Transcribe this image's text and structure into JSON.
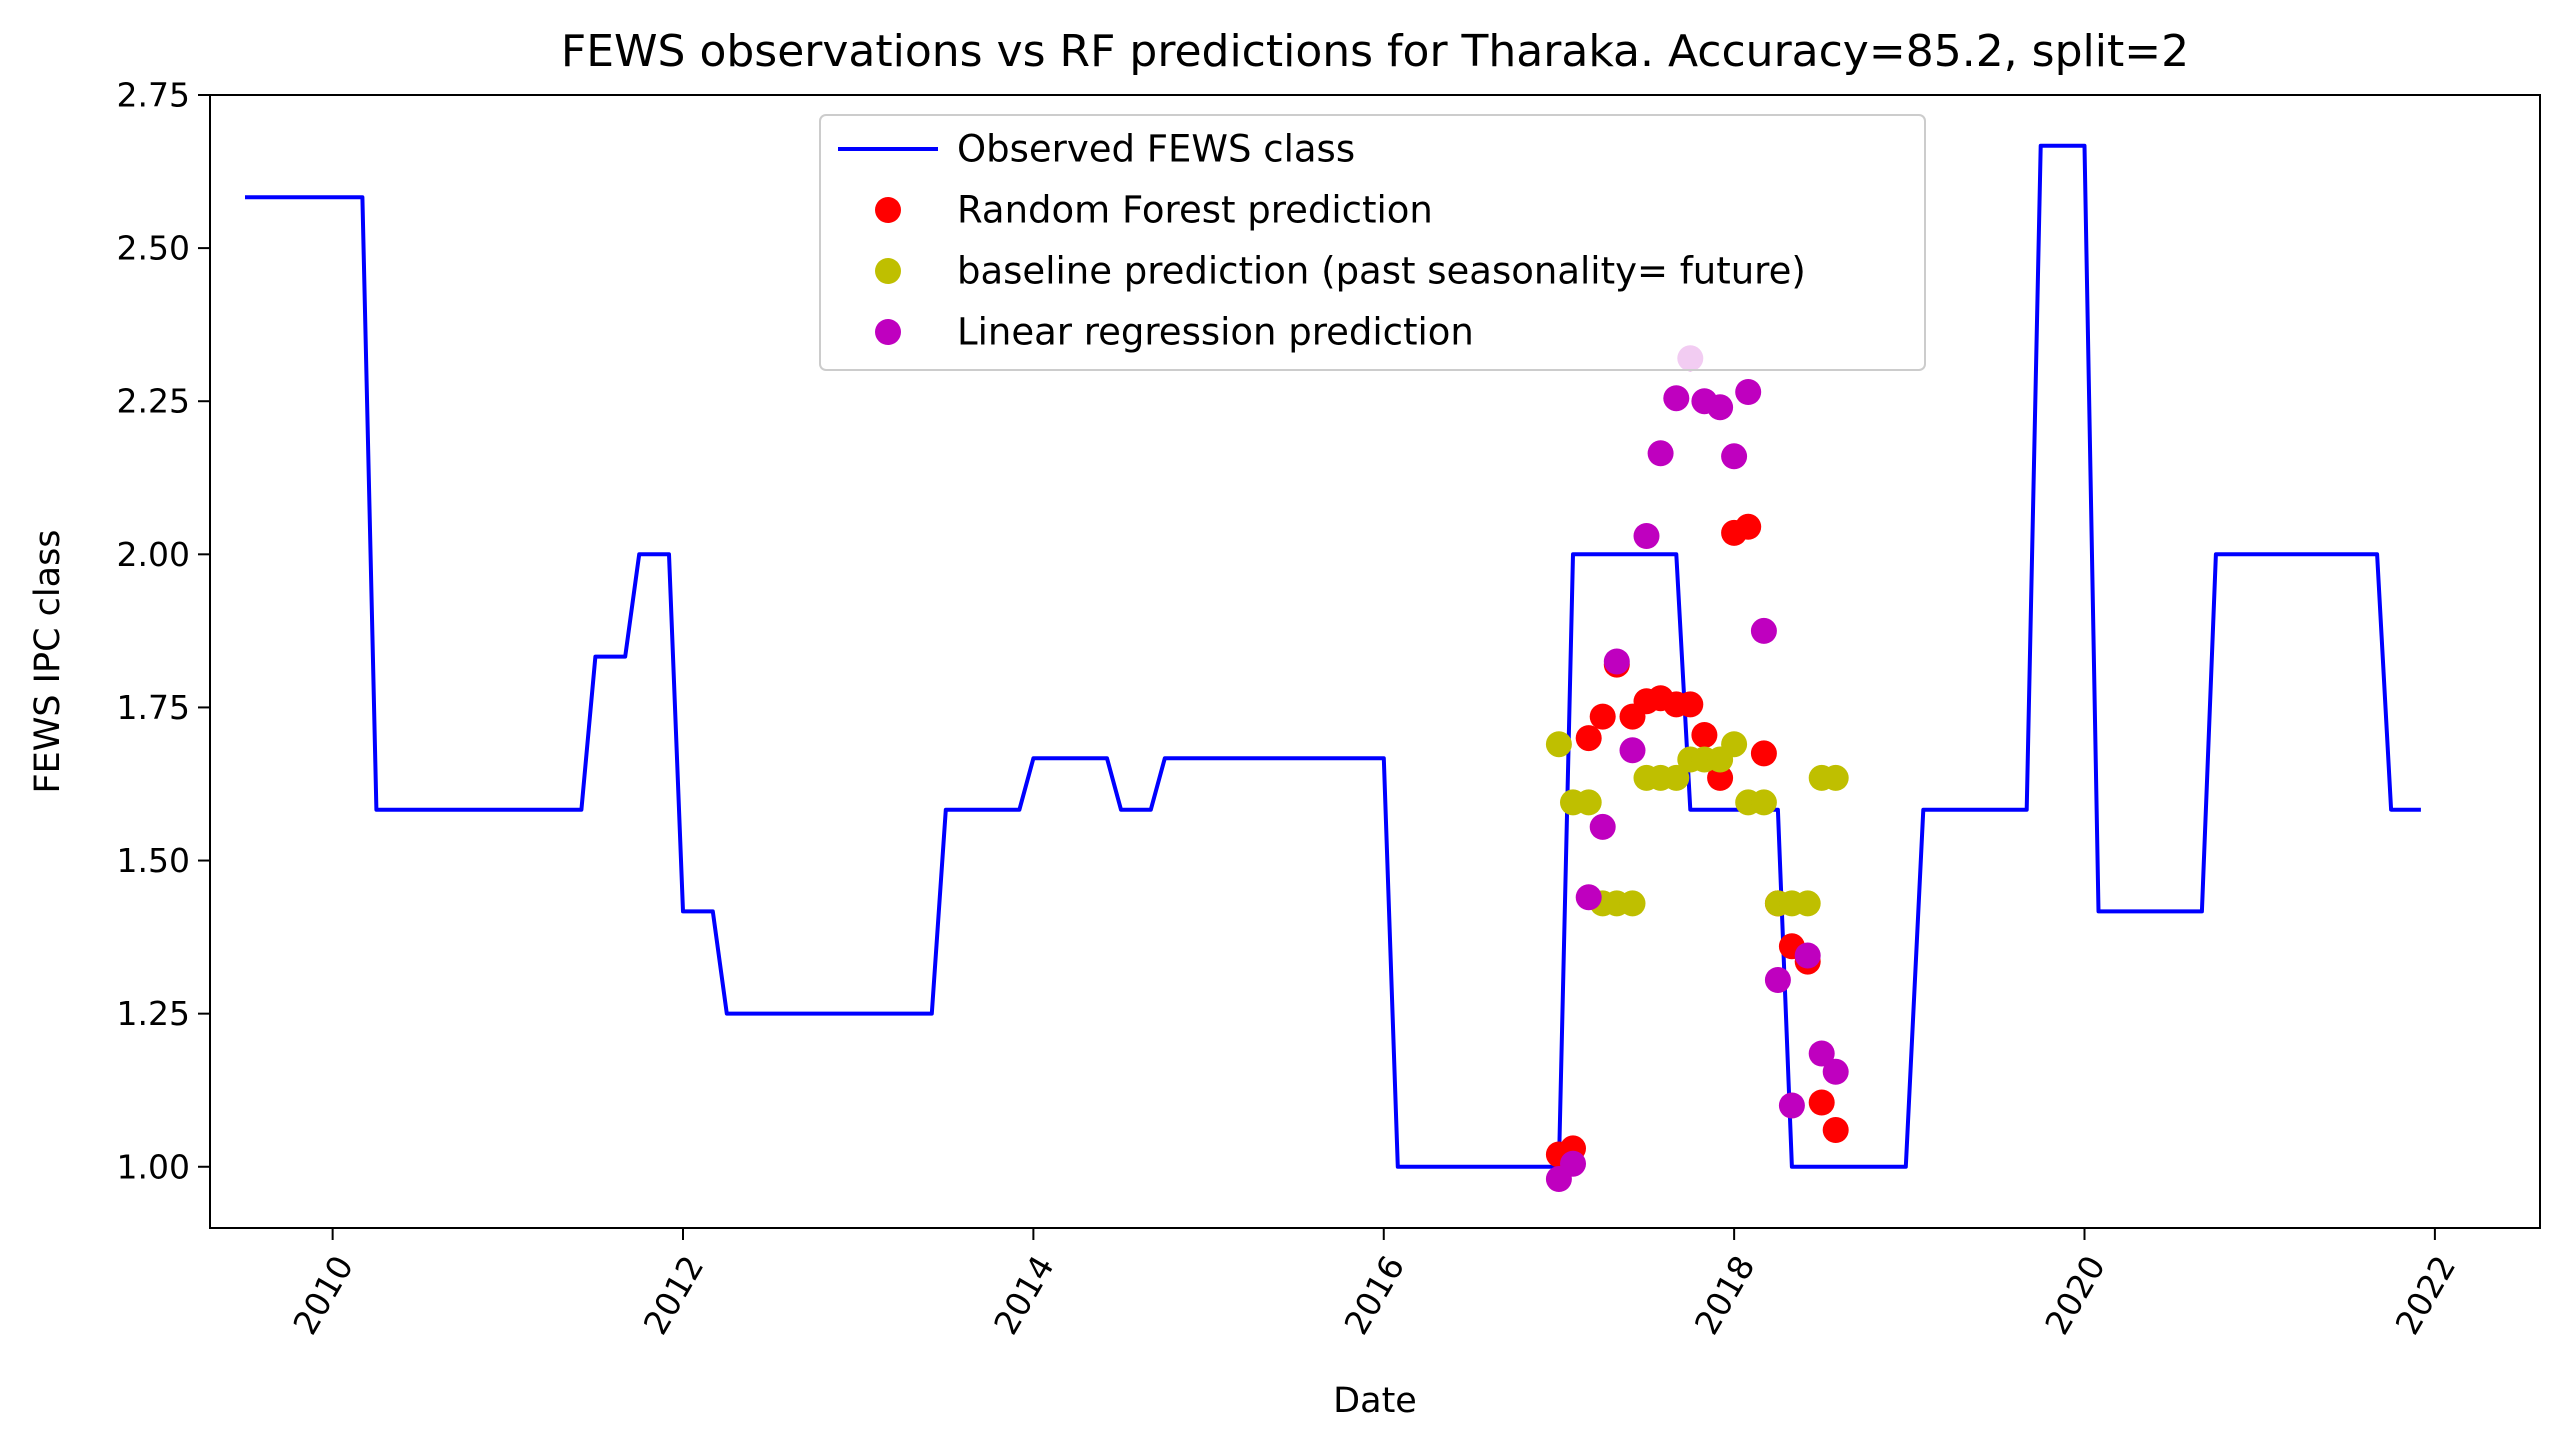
{
  "chart_data": {
    "type": "line",
    "title": "FEWS observations vs RF predictions for Tharaka. Accuracy=85.2, split=2",
    "xlabel": "Date",
    "ylabel": "FEWS IPC class",
    "xlim": [
      2009.3,
      2022.6
    ],
    "ylim": [
      0.9,
      2.75
    ],
    "x_ticks": [
      2010,
      2012,
      2014,
      2016,
      2018,
      2020,
      2022
    ],
    "x_tick_labels": [
      "2010",
      "2012",
      "2014",
      "2016",
      "2018",
      "2020",
      "2022"
    ],
    "y_ticks": [
      1.0,
      1.25,
      1.5,
      1.75,
      2.0,
      2.25,
      2.5,
      2.75
    ],
    "y_tick_labels": [
      "1.00",
      "1.25",
      "1.50",
      "1.75",
      "2.00",
      "2.25",
      "2.50",
      "2.75"
    ],
    "grid": false,
    "legend_position": "upper center",
    "series": [
      {
        "name": "Observed FEWS class",
        "kind": "line",
        "color": "#0000ff",
        "points": [
          [
            2009.5,
            2.583
          ],
          [
            2010.17,
            2.583
          ],
          [
            2010.25,
            1.583
          ],
          [
            2011.42,
            1.583
          ],
          [
            2011.5,
            1.833
          ],
          [
            2011.67,
            1.833
          ],
          [
            2011.75,
            2.0
          ],
          [
            2011.92,
            2.0
          ],
          [
            2012.0,
            1.417
          ],
          [
            2012.17,
            1.417
          ],
          [
            2012.25,
            1.25
          ],
          [
            2013.42,
            1.25
          ],
          [
            2013.5,
            1.583
          ],
          [
            2013.92,
            1.583
          ],
          [
            2014.0,
            1.667
          ],
          [
            2014.42,
            1.667
          ],
          [
            2014.5,
            1.583
          ],
          [
            2014.67,
            1.583
          ],
          [
            2014.75,
            1.667
          ],
          [
            2016.0,
            1.667
          ],
          [
            2016.08,
            1.0
          ],
          [
            2017.0,
            1.0
          ],
          [
            2017.08,
            2.0
          ],
          [
            2017.67,
            2.0
          ],
          [
            2017.75,
            1.583
          ],
          [
            2018.25,
            1.583
          ],
          [
            2018.33,
            1.0
          ],
          [
            2018.98,
            1.0
          ],
          [
            2019.08,
            1.583
          ],
          [
            2019.67,
            1.583
          ],
          [
            2019.75,
            2.667
          ],
          [
            2020.0,
            2.667
          ],
          [
            2020.08,
            1.417
          ],
          [
            2020.67,
            1.417
          ],
          [
            2020.75,
            2.0
          ],
          [
            2021.67,
            2.0
          ],
          [
            2021.75,
            1.583
          ],
          [
            2021.92,
            1.583
          ]
        ]
      },
      {
        "name": "Random Forest prediction",
        "kind": "scatter",
        "color": "#ff0000",
        "points": [
          [
            2017.0,
            1.02
          ],
          [
            2017.08,
            1.03
          ],
          [
            2017.17,
            1.7
          ],
          [
            2017.25,
            1.735
          ],
          [
            2017.33,
            1.82
          ],
          [
            2017.42,
            1.735
          ],
          [
            2017.5,
            1.76
          ],
          [
            2017.58,
            1.765
          ],
          [
            2017.67,
            1.755
          ],
          [
            2017.75,
            1.755
          ],
          [
            2017.83,
            1.705
          ],
          [
            2017.92,
            1.635
          ],
          [
            2018.0,
            2.035
          ],
          [
            2018.08,
            2.045
          ],
          [
            2018.17,
            1.675
          ],
          [
            2018.25,
            1.43
          ],
          [
            2018.33,
            1.36
          ],
          [
            2018.42,
            1.335
          ],
          [
            2018.5,
            1.105
          ],
          [
            2018.58,
            1.06
          ]
        ]
      },
      {
        "name": "baseline prediction (past seasonality= future)",
        "kind": "scatter",
        "color": "#bfbf00",
        "points": [
          [
            2017.0,
            1.69
          ],
          [
            2017.08,
            1.595
          ],
          [
            2017.17,
            1.595
          ],
          [
            2017.25,
            1.43
          ],
          [
            2017.33,
            1.43
          ],
          [
            2017.42,
            1.43
          ],
          [
            2017.5,
            1.635
          ],
          [
            2017.58,
            1.635
          ],
          [
            2017.67,
            1.635
          ],
          [
            2017.75,
            1.665
          ],
          [
            2017.83,
            1.665
          ],
          [
            2017.92,
            1.665
          ],
          [
            2018.0,
            1.69
          ],
          [
            2018.08,
            1.595
          ],
          [
            2018.17,
            1.595
          ],
          [
            2018.25,
            1.43
          ],
          [
            2018.33,
            1.43
          ],
          [
            2018.42,
            1.43
          ],
          [
            2018.5,
            1.635
          ],
          [
            2018.58,
            1.635
          ]
        ]
      },
      {
        "name": "Linear regression prediction",
        "kind": "scatter",
        "color": "#bf00bf",
        "points": [
          [
            2017.0,
            0.98
          ],
          [
            2017.08,
            1.005
          ],
          [
            2017.17,
            1.44
          ],
          [
            2017.25,
            1.555
          ],
          [
            2017.33,
            1.825
          ],
          [
            2017.42,
            1.68
          ],
          [
            2017.5,
            2.03
          ],
          [
            2017.58,
            2.165
          ],
          [
            2017.67,
            2.255
          ],
          [
            2017.75,
            2.32
          ],
          [
            2017.83,
            2.25
          ],
          [
            2017.92,
            2.24
          ],
          [
            2018.0,
            2.16
          ],
          [
            2018.08,
            2.265
          ],
          [
            2018.17,
            1.875
          ],
          [
            2018.25,
            1.305
          ],
          [
            2018.33,
            1.1
          ],
          [
            2018.42,
            1.345
          ],
          [
            2018.5,
            1.185
          ],
          [
            2018.58,
            1.155
          ]
        ]
      }
    ]
  }
}
